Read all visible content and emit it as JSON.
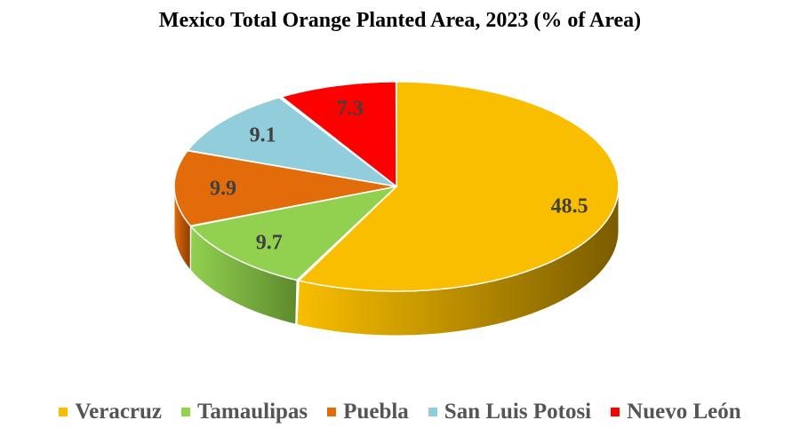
{
  "chart_data": {
    "type": "pie",
    "title": "Mexico Total Orange Planted Area, 2023 (% of Area)",
    "categories": [
      "Veracruz",
      "Tamaulipas",
      "Puebla",
      "San Luis Potosi",
      "Nuevo León"
    ],
    "values": [
      48.5,
      9.7,
      9.9,
      9.1,
      7.3
    ],
    "data_labels": [
      "48.5",
      "9.7",
      "9.9",
      "9.1",
      "7.3"
    ],
    "colors": [
      "#F9BE00",
      "#92D050",
      "#E26B0A",
      "#92CDDC",
      "#FF0000"
    ],
    "side_colors": [
      "#7A5C00",
      "#5E8A2E",
      "#8A3E05",
      "#5B8A96",
      "#990000"
    ],
    "legend_position": "bottom",
    "style": "3d"
  }
}
